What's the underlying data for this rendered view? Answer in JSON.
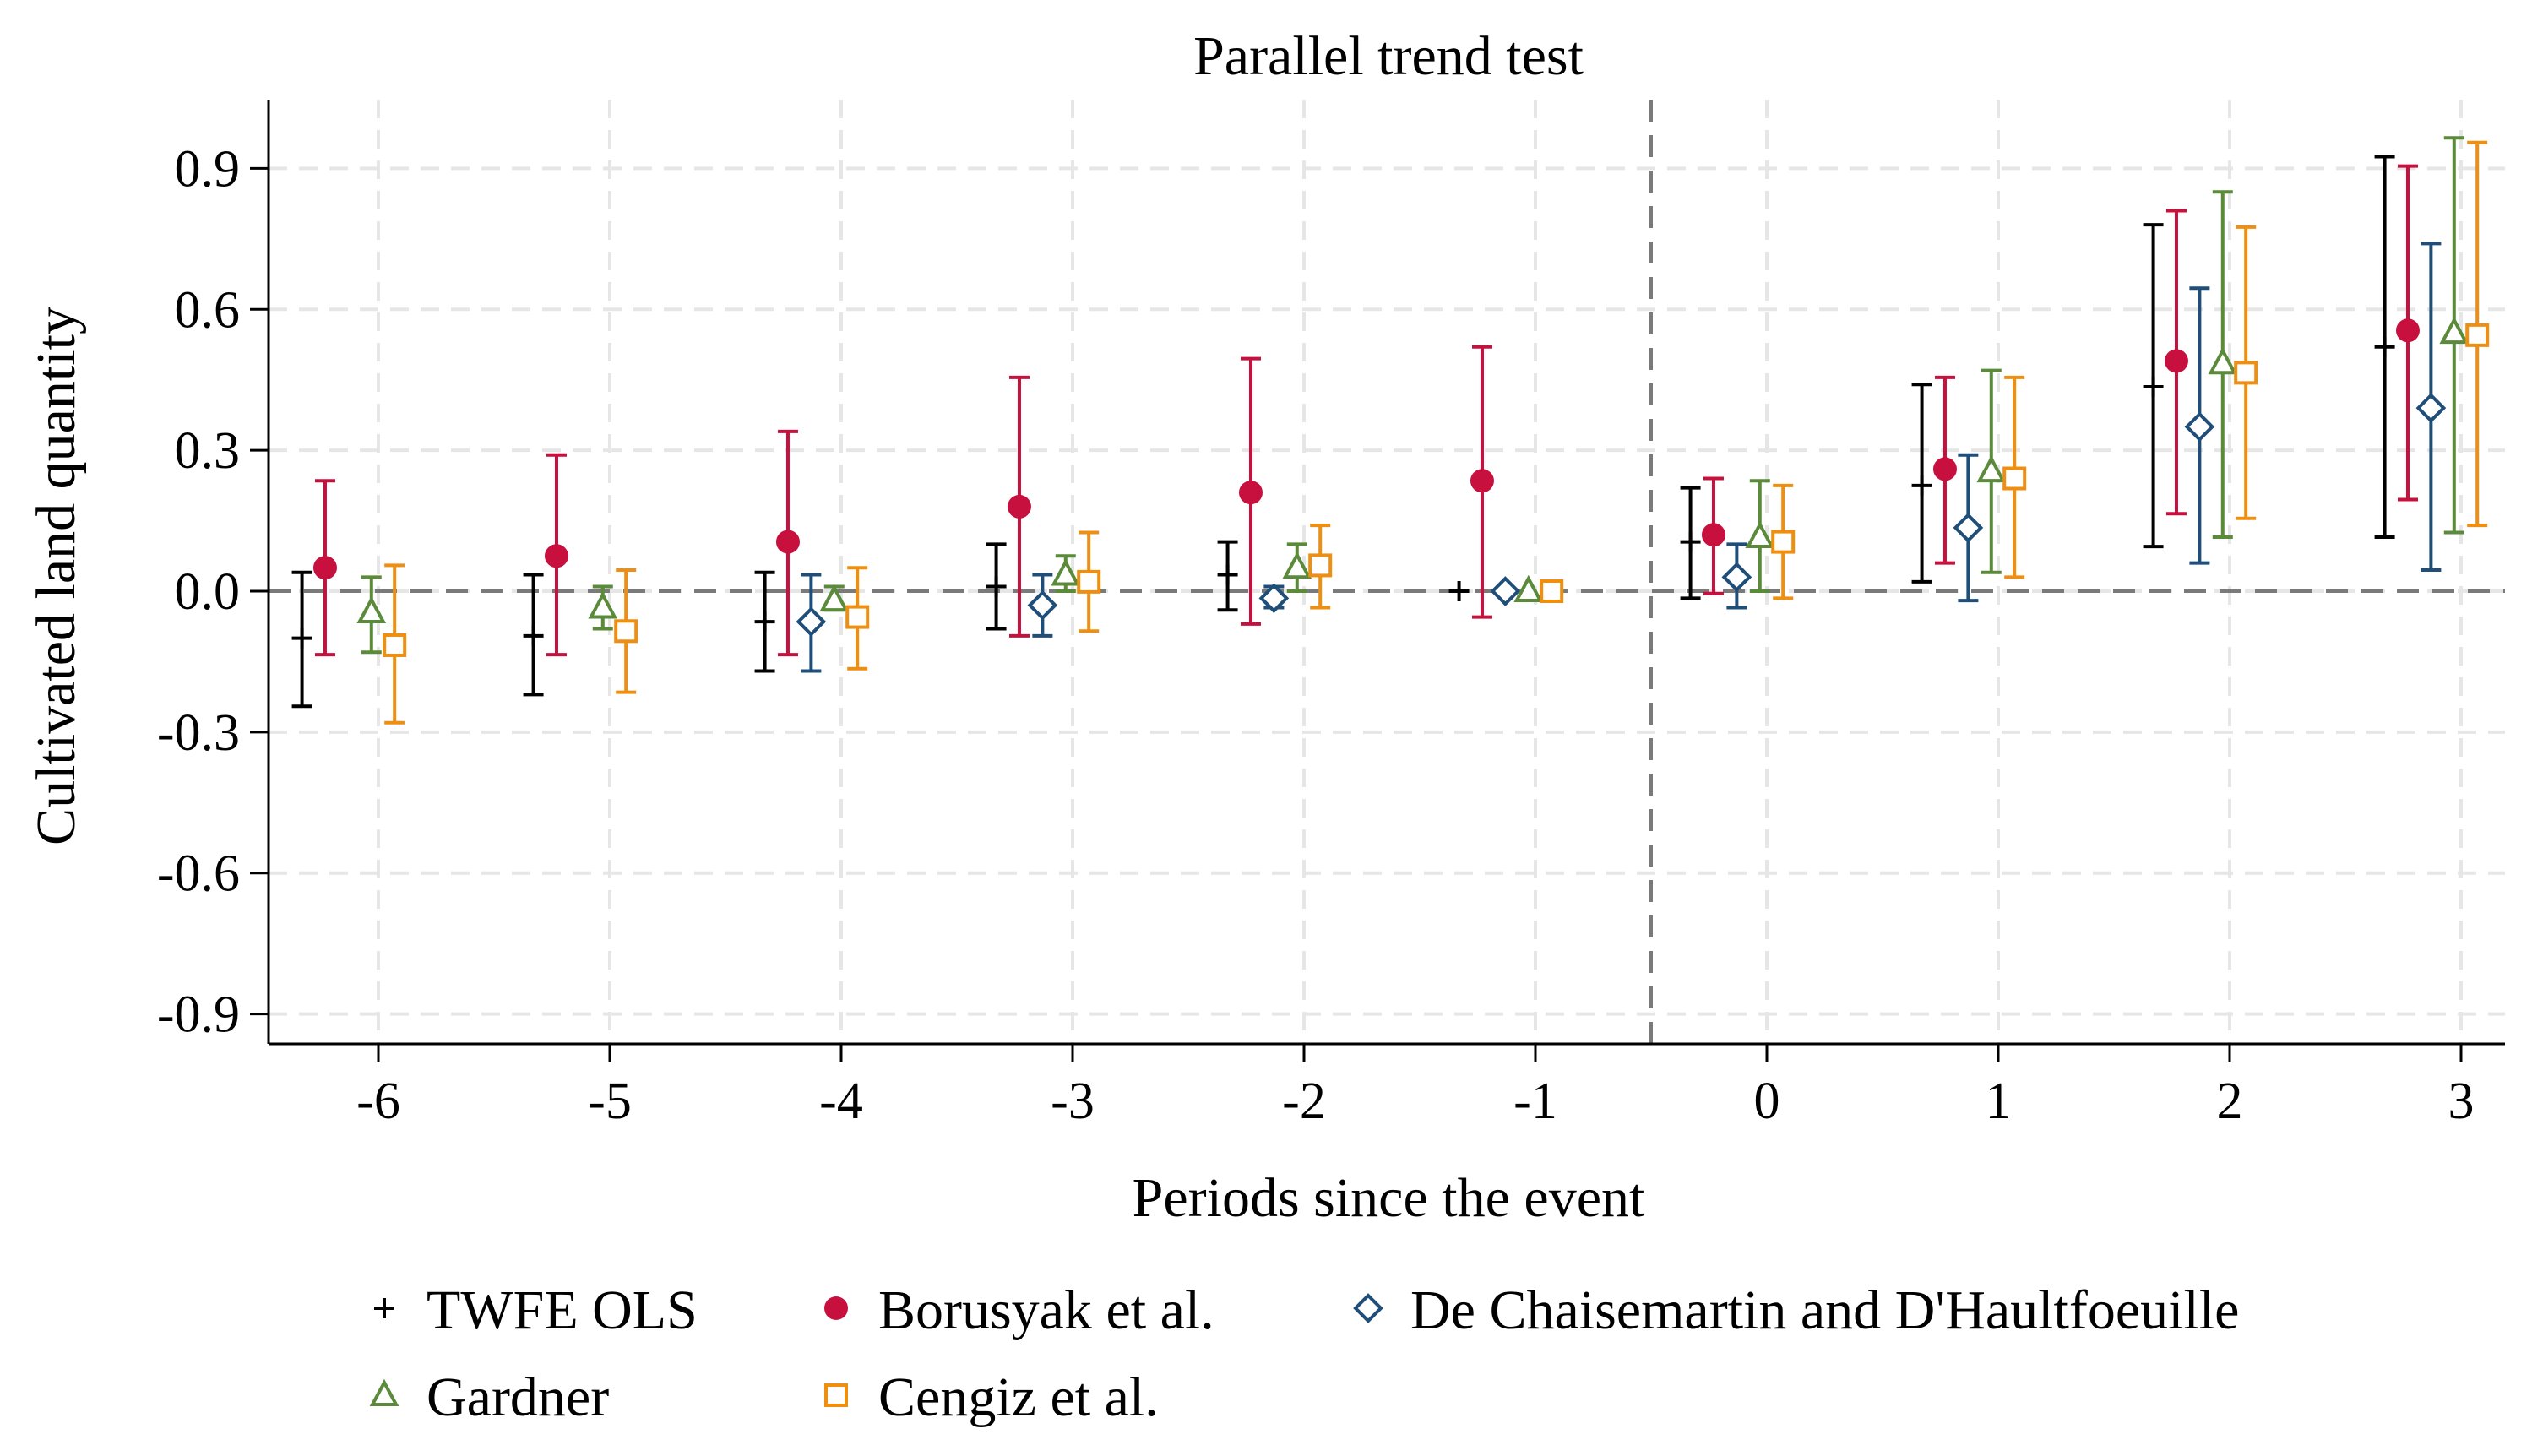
{
  "chart_data": {
    "type": "scatter",
    "title": "Parallel trend test",
    "xlabel": "Periods since the event",
    "ylabel": "Cultivated land quantity",
    "xlim": [
      -6.5,
      3.2
    ],
    "ylim": [
      -0.97,
      1.04
    ],
    "x_ticks": [
      -6,
      -5,
      -4,
      -3,
      -2,
      -1,
      0,
      1,
      2,
      3
    ],
    "x_tick_labels": [
      "-6",
      "-5",
      "-4",
      "-3",
      "-2",
      "-1",
      "0",
      "1",
      "2",
      "3"
    ],
    "y_ticks": [
      -0.9,
      -0.6,
      -0.3,
      0.0,
      0.3,
      0.6,
      0.9
    ],
    "y_tick_labels": [
      "-0.9",
      "-0.6",
      "-0.3",
      "0.0",
      "0.3",
      "0.6",
      "0.9"
    ],
    "event_line_x": -0.5,
    "grid": true,
    "legend_position": "bottom",
    "series": [
      {
        "name": "TWFE OLS",
        "marker": "plus",
        "color": "#000000",
        "offset": -0.33,
        "x": [
          -6,
          -5,
          -4,
          -3,
          -2,
          -1,
          0,
          1,
          2,
          3
        ],
        "values": [
          -0.1,
          -0.095,
          -0.065,
          0.01,
          0.035,
          0.0,
          0.105,
          0.225,
          0.435,
          0.52
        ],
        "ci_low": [
          -0.245,
          -0.22,
          -0.17,
          -0.08,
          -0.04,
          0.0,
          -0.015,
          0.02,
          0.095,
          0.115
        ],
        "ci_high": [
          0.04,
          0.035,
          0.04,
          0.1,
          0.105,
          0.0,
          0.22,
          0.44,
          0.78,
          0.925
        ]
      },
      {
        "name": "Borusyak et al.",
        "marker": "circle",
        "color": "#c8103e",
        "offset": -0.23,
        "x": [
          -6,
          -5,
          -4,
          -3,
          -2,
          -1,
          0,
          1,
          2,
          3
        ],
        "values": [
          0.05,
          0.075,
          0.105,
          0.18,
          0.21,
          0.235,
          0.12,
          0.26,
          0.49,
          0.555
        ],
        "ci_low": [
          -0.135,
          -0.135,
          -0.135,
          -0.095,
          -0.07,
          -0.055,
          -0.005,
          0.06,
          0.165,
          0.195
        ],
        "ci_high": [
          0.235,
          0.29,
          0.34,
          0.455,
          0.495,
          0.52,
          0.24,
          0.455,
          0.81,
          0.905
        ]
      },
      {
        "name": "De Chaisemartin and D'Haultfoeuille",
        "marker": "diamond",
        "color": "#1f4e79",
        "offset": -0.13,
        "x": [
          -4,
          -3,
          -2,
          -1,
          0,
          1,
          2,
          3
        ],
        "values": [
          -0.065,
          -0.03,
          -0.015,
          0.0,
          0.03,
          0.135,
          0.35,
          0.39
        ],
        "ci_low": [
          -0.17,
          -0.095,
          -0.035,
          0.0,
          -0.035,
          -0.02,
          0.06,
          0.045
        ],
        "ci_high": [
          0.035,
          0.035,
          0.01,
          0.0,
          0.1,
          0.29,
          0.645,
          0.74
        ]
      },
      {
        "name": "Gardner",
        "marker": "triangle",
        "color": "#5a8a3a",
        "offset": -0.03,
        "x": [
          -6,
          -5,
          -4,
          -3,
          -2,
          -1,
          0,
          1,
          2,
          3
        ],
        "values": [
          -0.045,
          -0.035,
          -0.02,
          0.035,
          0.05,
          0.0,
          0.115,
          0.255,
          0.485,
          0.55
        ],
        "ci_low": [
          -0.13,
          -0.08,
          -0.04,
          0.0,
          0.0,
          0.0,
          0.0,
          0.04,
          0.115,
          0.125
        ],
        "ci_high": [
          0.03,
          0.01,
          0.01,
          0.075,
          0.1,
          0.0,
          0.235,
          0.47,
          0.85,
          0.965
        ]
      },
      {
        "name": "Cengiz et al.",
        "marker": "square",
        "color": "#ee8f12",
        "offset": 0.07,
        "x": [
          -6,
          -5,
          -4,
          -3,
          -2,
          -1,
          0,
          1,
          2,
          3
        ],
        "values": [
          -0.115,
          -0.085,
          -0.055,
          0.02,
          0.055,
          0.0,
          0.105,
          0.24,
          0.465,
          0.545
        ],
        "ci_low": [
          -0.28,
          -0.215,
          -0.165,
          -0.085,
          -0.035,
          0.0,
          -0.015,
          0.03,
          0.155,
          0.14
        ],
        "ci_high": [
          0.055,
          0.045,
          0.05,
          0.125,
          0.14,
          0.0,
          0.225,
          0.455,
          0.775,
          0.955
        ]
      }
    ]
  }
}
